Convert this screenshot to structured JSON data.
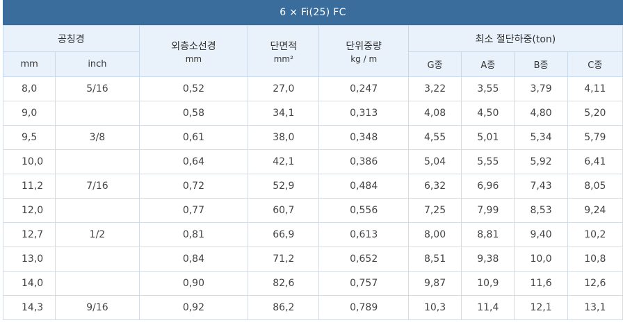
{
  "title": "6 × Fi(25) FC",
  "headers": {
    "nominal_diameter": "공칭경",
    "mm": "mm",
    "inch": "inch",
    "strand_diameter": "외층소선경",
    "strand_unit": "mm",
    "area": "단면적",
    "area_unit": "mm²",
    "unit_weight": "단위중량",
    "unit_weight_unit": "kg / m",
    "breaking_load": "최소 절단하중(ton)",
    "grades": [
      "G종",
      "A종",
      "B종",
      "C종"
    ]
  },
  "rows": [
    {
      "mm": "8,0",
      "inch": "5/16",
      "strand": "0,52",
      "area": "27,0",
      "weight": "0,247",
      "g": "3,22",
      "a": "3,55",
      "b": "3,79",
      "c": "4,11"
    },
    {
      "mm": "9,0",
      "inch": "",
      "strand": "0,58",
      "area": "34,1",
      "weight": "0,313",
      "g": "4,08",
      "a": "4,50",
      "b": "4,80",
      "c": "5,20"
    },
    {
      "mm": "9,5",
      "inch": "3/8",
      "strand": "0,61",
      "area": "38,0",
      "weight": "0,348",
      "g": "4,55",
      "a": "5,01",
      "b": "5,34",
      "c": "5,79"
    },
    {
      "mm": "10,0",
      "inch": "",
      "strand": "0,64",
      "area": "42,1",
      "weight": "0,386",
      "g": "5,04",
      "a": "5,55",
      "b": "5,92",
      "c": "6,41"
    },
    {
      "mm": "11,2",
      "inch": "7/16",
      "strand": "0,72",
      "area": "52,9",
      "weight": "0,484",
      "g": "6,32",
      "a": "6,96",
      "b": "7,43",
      "c": "8,05"
    },
    {
      "mm": "12,0",
      "inch": "",
      "strand": "0,77",
      "area": "60,7",
      "weight": "0,556",
      "g": "7,25",
      "a": "7,99",
      "b": "8,53",
      "c": "9,24"
    },
    {
      "mm": "12,7",
      "inch": "1/2",
      "strand": "0,81",
      "area": "66,9",
      "weight": "0,613",
      "g": "8,00",
      "a": "8,81",
      "b": "9,40",
      "c": "10,2"
    },
    {
      "mm": "13,0",
      "inch": "",
      "strand": "0,84",
      "area": "71,2",
      "weight": "0,652",
      "g": "8,51",
      "a": "9,38",
      "b": "10,0",
      "c": "10,8"
    },
    {
      "mm": "14,0",
      "inch": "",
      "strand": "0,90",
      "area": "82,6",
      "weight": "0,757",
      "g": "9,87",
      "a": "10,9",
      "b": "11,6",
      "c": "12,6"
    },
    {
      "mm": "14,3",
      "inch": "9/16",
      "strand": "0,92",
      "area": "86,2",
      "weight": "0,789",
      "g": "10,3",
      "a": "11,4",
      "b": "12,1",
      "c": "13,1"
    }
  ],
  "colors": {
    "title_bg": "#3a6d9b",
    "header_bg": "#e9f1fb"
  }
}
